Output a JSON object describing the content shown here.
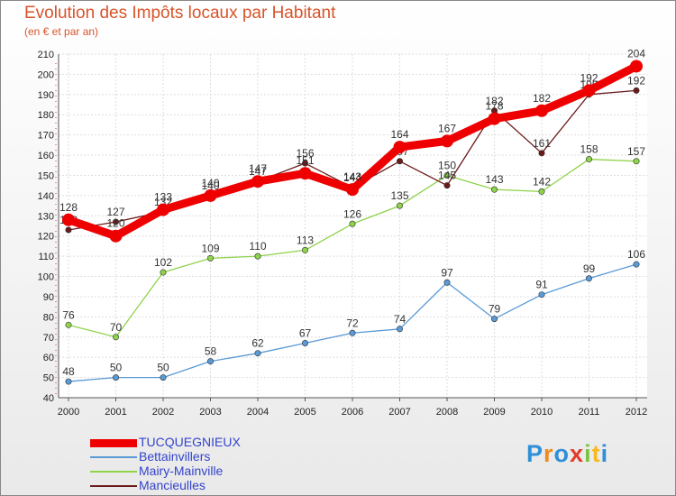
{
  "chart_data": {
    "type": "line",
    "title": "Evolution des Impôts locaux par Habitant",
    "subtitle": "(en € et par an)",
    "x": [
      "2000",
      "2001",
      "2002",
      "2003",
      "2004",
      "2005",
      "2006",
      "2007",
      "2008",
      "2009",
      "2010",
      "2011",
      "2012"
    ],
    "ylim": [
      40,
      210
    ],
    "yticks": [
      40,
      50,
      60,
      70,
      80,
      90,
      100,
      110,
      120,
      130,
      140,
      150,
      160,
      170,
      180,
      190,
      200,
      210
    ],
    "grid": true,
    "series": [
      {
        "name": "TUCQUEGNIEUX",
        "color": "#ee0000",
        "values": [
          128,
          120,
          133,
          140,
          147,
          151,
          143,
          164,
          167,
          178,
          182,
          192,
          204
        ]
      },
      {
        "name": "Bettainvillers",
        "color": "#5a9ad6",
        "values": [
          48,
          50,
          50,
          58,
          62,
          67,
          72,
          74,
          97,
          79,
          91,
          99,
          106
        ]
      },
      {
        "name": "Mairy-Mainville",
        "color": "#8ed34a",
        "values": [
          76,
          70,
          102,
          109,
          110,
          113,
          126,
          135,
          150,
          143,
          142,
          158,
          157
        ]
      },
      {
        "name": "Mancieulles",
        "color": "#6b1a1a",
        "values": [
          123,
          127,
          132,
          140,
          147,
          156,
          144,
          157,
          145,
          182,
          161,
          190,
          192
        ]
      }
    ]
  },
  "logo": {
    "letters": [
      "P",
      "r",
      "o",
      "x",
      "i",
      "t",
      "i"
    ],
    "colors": [
      "#2f8fd8",
      "#f08a1f",
      "#2f8fd8",
      "#e33b2a",
      "#7cc242",
      "#f5b921",
      "#2f8fd8"
    ]
  }
}
